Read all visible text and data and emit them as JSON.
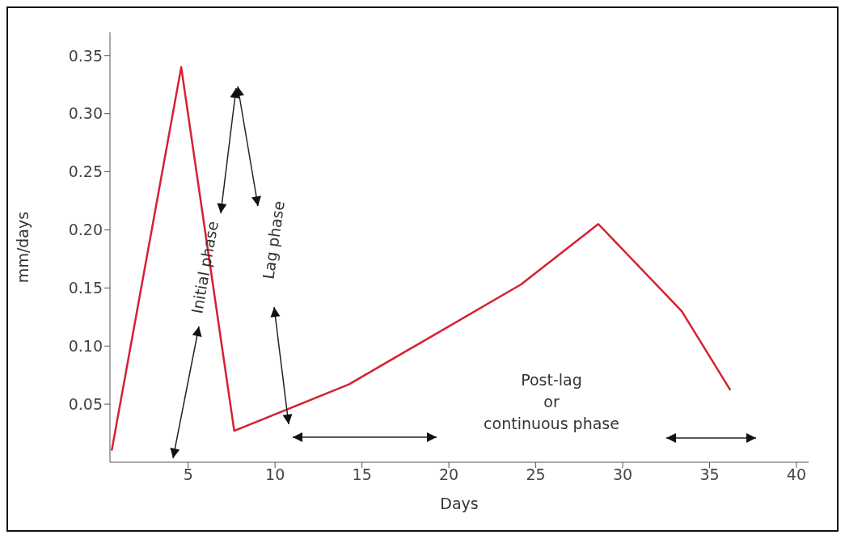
{
  "chart_data": {
    "type": "line",
    "xlabel": "Days",
    "ylabel": "mm/days",
    "x": [
      0.6,
      4.6,
      7.65,
      14.25,
      24.15,
      28.6,
      33.4,
      36.2
    ],
    "series": [
      {
        "color": "#d62031",
        "values": [
          0.01,
          0.34,
          0.027,
          0.067,
          0.153,
          0.205,
          0.13,
          0.062
        ]
      }
    ],
    "xlim": [
      0.5,
      40.7
    ],
    "xticks": [
      5,
      10,
      15,
      20,
      25,
      30,
      35,
      40
    ],
    "ylim": [
      0,
      0.37
    ],
    "yticks": [
      {
        "value": 0.05,
        "label": "0.05"
      },
      {
        "value": 0.1,
        "label": "0.10"
      },
      {
        "value": 0.15,
        "label": "0.15"
      },
      {
        "value": 0.2,
        "label": "0.20"
      },
      {
        "value": 0.25,
        "label": "0.25"
      },
      {
        "value": 0.3,
        "label": "0.30"
      },
      {
        "value": 0.35,
        "label": "0.35"
      }
    ],
    "grid": false,
    "legend": false,
    "annotations": [
      "Initial phase",
      "Lag phase",
      "Post-lag\nor\ncontinuous phase"
    ]
  }
}
